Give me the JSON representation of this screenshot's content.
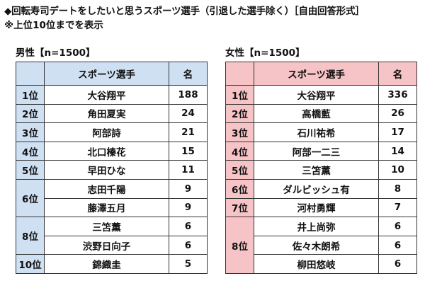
{
  "title": "◆回転寿司デートをしたいと思うスポーツ選手（引退した選手除く）［自由回答形式］",
  "subtitle": "※上位10位までを表示",
  "male": {
    "label": "男性【n=1500】",
    "header_name": "スポーツ選手",
    "header_count": "名",
    "rows": [
      {
        "rank": "1位",
        "name": "大谷翔平",
        "count": "188"
      },
      {
        "rank": "2位",
        "name": "角田夏実",
        "count": "24"
      },
      {
        "rank": "3位",
        "name": "阿部詩",
        "count": "21"
      },
      {
        "rank": "4位",
        "name": "北口榛花",
        "count": "15"
      },
      {
        "rank": "5位",
        "name": "早田ひな",
        "count": "11"
      },
      {
        "rank": "6位",
        "name": "志田千陽",
        "count": "9"
      },
      {
        "rank": "",
        "name": "藤澤五月",
        "count": "9"
      },
      {
        "rank": "8位",
        "name": "三笘薫",
        "count": "6"
      },
      {
        "rank": "",
        "name": "渋野日向子",
        "count": "6"
      },
      {
        "rank": "10位",
        "name": "錦織圭",
        "count": "5"
      }
    ]
  },
  "female": {
    "label": "女性【n=1500】",
    "header_name": "スポーツ選手",
    "header_count": "名",
    "rows": [
      {
        "rank": "1位",
        "name": "大谷翔平",
        "count": "336"
      },
      {
        "rank": "2位",
        "name": "高橋藍",
        "count": "26"
      },
      {
        "rank": "3位",
        "name": "石川祐希",
        "count": "17"
      },
      {
        "rank": "4位",
        "name": "阿部一二三",
        "count": "14"
      },
      {
        "rank": "5位",
        "name": "三笘薫",
        "count": "10"
      },
      {
        "rank": "6位",
        "name": "ダルビッシュ有",
        "count": "8"
      },
      {
        "rank": "7位",
        "name": "河村勇輝",
        "count": "7"
      },
      {
        "rank": "8位",
        "name": "井上尚弥",
        "count": "6"
      },
      {
        "rank": "",
        "name": "佐々木朗希",
        "count": "6"
      },
      {
        "rank": "",
        "name": "柳田悠岐",
        "count": "6"
      }
    ]
  }
}
